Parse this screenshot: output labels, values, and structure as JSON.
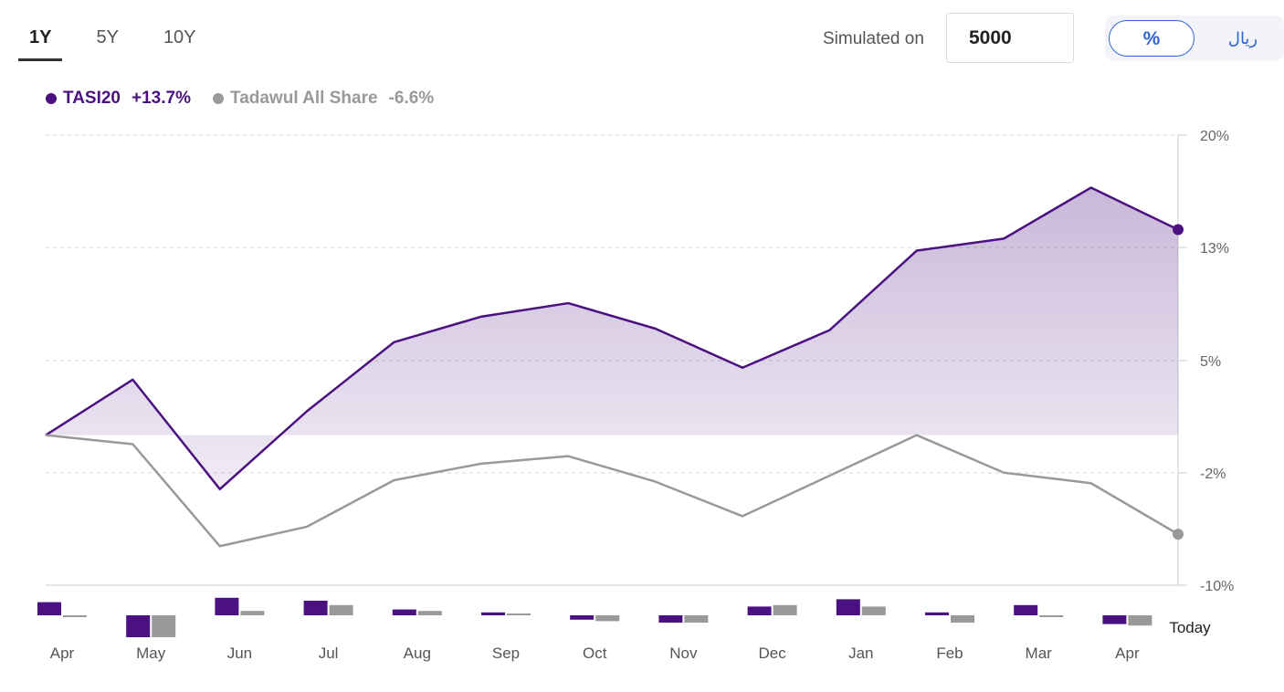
{
  "tabs": [
    {
      "label": "1Y",
      "active": true
    },
    {
      "label": "5Y",
      "active": false
    },
    {
      "label": "10Y",
      "active": false
    }
  ],
  "simulation": {
    "label": "Simulated on",
    "value": "5000"
  },
  "unit_toggle": {
    "percent_label": "%",
    "currency_label": "ريال",
    "selected": "%"
  },
  "legend": [
    {
      "name": "TASI20",
      "change": "+13.7%",
      "color": "#4b1180"
    },
    {
      "name": "Tadawul All Share",
      "change": "-6.6%",
      "color": "#999999"
    }
  ],
  "colors": {
    "primary": "#4b1180",
    "secondary": "#999999",
    "accent": "#2f63d6"
  },
  "chart_data": {
    "type": "line",
    "x": [
      "Apr",
      "May",
      "Jun",
      "Jul",
      "Aug",
      "Sep",
      "Oct",
      "Nov",
      "Dec",
      "Jan",
      "Feb",
      "Mar",
      "Apr",
      "Today"
    ],
    "y_ticks": [
      "20%",
      "13%",
      "5%",
      "-2%",
      "-10%"
    ],
    "ylim": [
      -10,
      20
    ],
    "end_label": "Today",
    "series": [
      {
        "name": "TASI20",
        "color": "#4b1180",
        "area": true,
        "values": [
          0,
          3.7,
          -3.6,
          1.6,
          6.2,
          7.9,
          8.8,
          7.1,
          4.5,
          7.0,
          12.3,
          13.1,
          16.5,
          13.7
        ]
      },
      {
        "name": "Tadawul All Share",
        "color": "#999999",
        "area": false,
        "values": [
          0,
          -0.6,
          -7.4,
          -6.1,
          -3.0,
          -1.9,
          -1.4,
          -3.1,
          -5.4,
          -2.7,
          0,
          -2.5,
          -3.2,
          -6.6
        ]
      }
    ],
    "monthly_bars": {
      "TASI20": [
        0.9,
        -1.5,
        1.2,
        1.0,
        0.4,
        0.2,
        -0.3,
        -0.5,
        0.6,
        1.1,
        0.2,
        0.7,
        -0.6
      ],
      "Tadawul All Share": [
        -0.1,
        -1.5,
        0.3,
        0.7,
        0.3,
        0.1,
        -0.4,
        -0.5,
        0.7,
        0.6,
        -0.5,
        -0.1,
        -0.7
      ]
    },
    "grid": true
  }
}
